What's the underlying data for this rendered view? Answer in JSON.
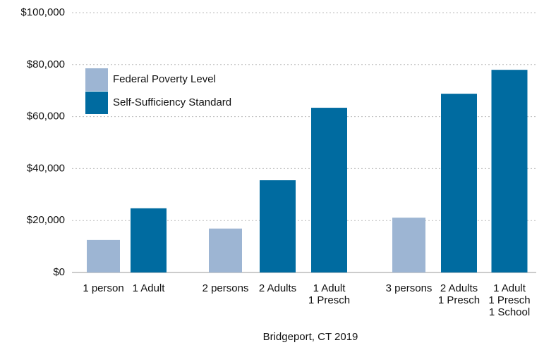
{
  "chart_data": {
    "type": "bar",
    "categories": [
      [
        "1 person"
      ],
      [
        "1 Adult"
      ],
      [
        "2 persons"
      ],
      [
        "2 Adults"
      ],
      [
        "1 Adult",
        "1 Presch"
      ],
      [
        "3 persons"
      ],
      [
        "2 Adults",
        "1 Presch"
      ],
      [
        "1 Adult",
        "1 Presch",
        "1 School"
      ]
    ],
    "series": [
      {
        "name": "Federal Poverty Level",
        "color": "#9db5d3",
        "values": [
          12500,
          null,
          16900,
          null,
          null,
          21100,
          null,
          null
        ]
      },
      {
        "name": "Self-Sufficiency Standard",
        "color": "#006ba0",
        "values": [
          null,
          24700,
          null,
          35500,
          63400,
          null,
          68800,
          78000
        ]
      }
    ],
    "xlabel": "Bridgeport, CT 2019",
    "ylim": [
      0,
      100000
    ],
    "yticks": [
      {
        "value": 0,
        "label": "$0"
      },
      {
        "value": 20000,
        "label": "$20,000"
      },
      {
        "value": 40000,
        "label": "$40,000"
      },
      {
        "value": 60000,
        "label": "$60,000"
      },
      {
        "value": 80000,
        "label": "$80,000"
      },
      {
        "value": 100000,
        "label": "$100,000"
      }
    ],
    "grid": true,
    "legend": "upper left"
  }
}
